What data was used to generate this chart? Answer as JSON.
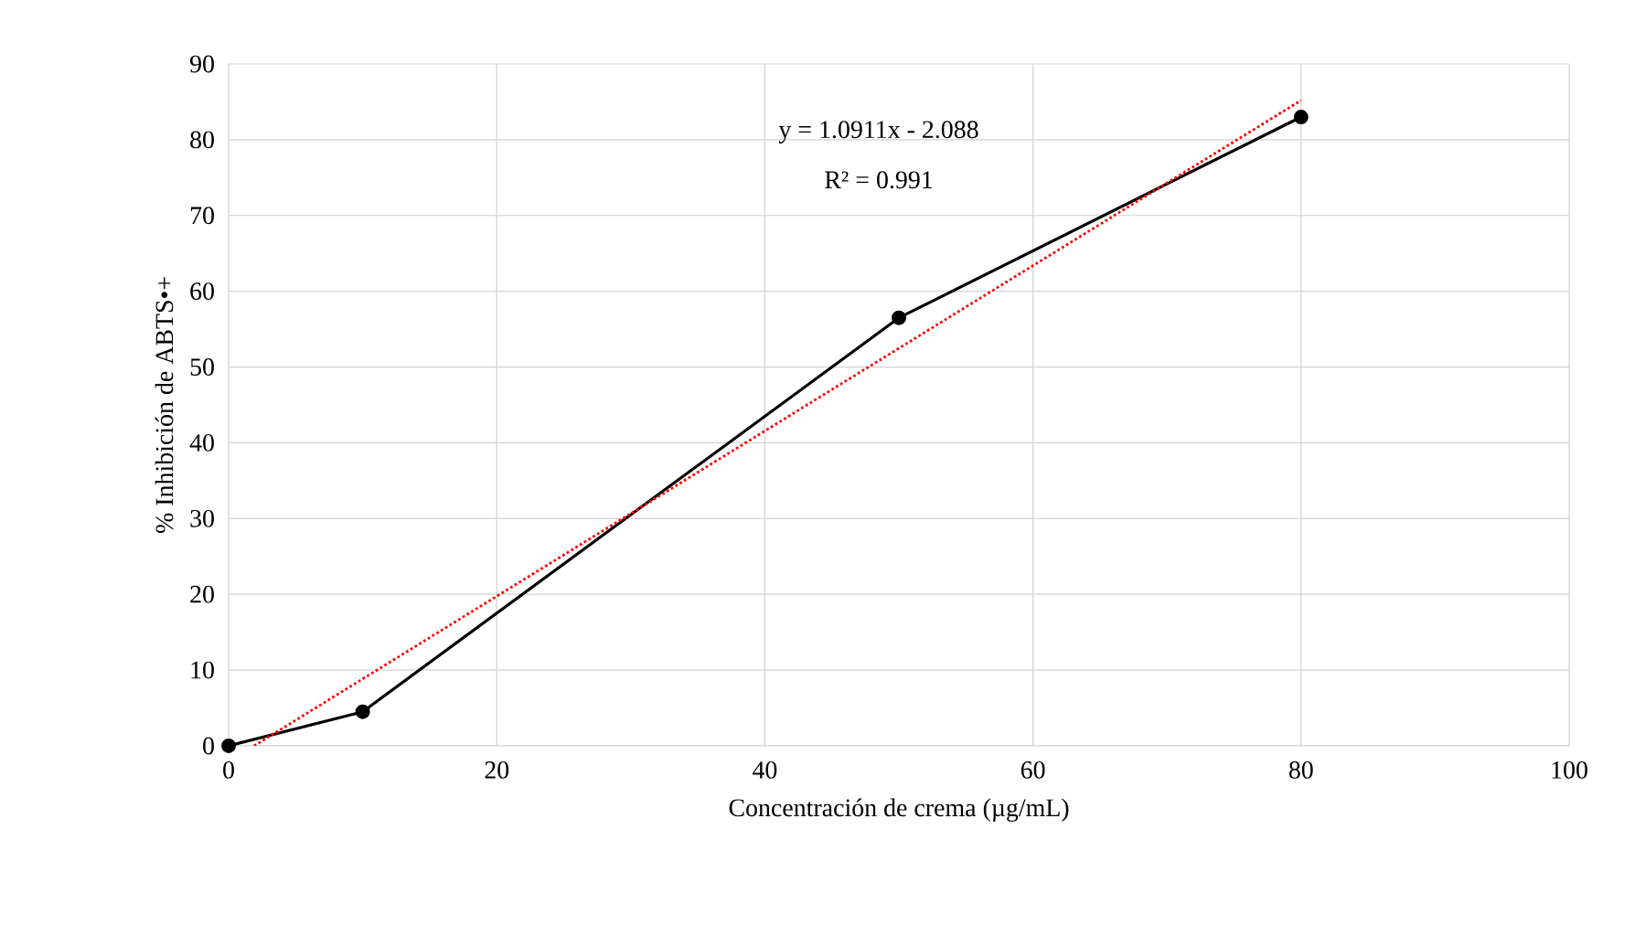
{
  "chart_data": {
    "type": "line",
    "xlabel": "Concentración de crema (µg/mL)",
    "ylabel": "% Inhibición de ABTS•+",
    "xlim": [
      0,
      100
    ],
    "xticks": [
      0,
      20,
      40,
      60,
      80,
      100
    ],
    "ylim": [
      0,
      90
    ],
    "yticks": [
      0,
      10,
      20,
      30,
      40,
      50,
      60,
      70,
      80,
      90
    ],
    "grid": true,
    "annotations": [
      "y = 1.0911x  - 2.088",
      "R² = 0.991"
    ],
    "series": [
      {
        "x": [
          0,
          10,
          50,
          80
        ],
        "values": [
          0,
          4.5,
          56.5,
          83
        ],
        "color": "#000000",
        "marker": "circle",
        "line_style": "solid"
      },
      {
        "x": [
          1.9,
          80
        ],
        "values": [
          0,
          85.2
        ],
        "color": "#ff0000",
        "marker": "none",
        "line_style": "dotted"
      }
    ]
  }
}
